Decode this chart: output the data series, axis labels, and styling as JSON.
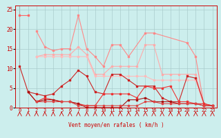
{
  "title": "",
  "xlabel": "Vent moyen/en rafales ( km/h )",
  "ylabel": "",
  "xlim": [
    -0.5,
    23.5
  ],
  "ylim": [
    0,
    26
  ],
  "bg_color": "#cceeed",
  "grid_color": "#aacccc",
  "series": [
    {
      "x": [
        0,
        1
      ],
      "y": [
        23.5,
        23.5
      ],
      "color": "#ff6666",
      "lw": 0.8,
      "ms": 2.0
    },
    {
      "x": [
        2,
        3,
        4,
        5,
        6,
        7,
        8,
        9,
        10,
        11,
        12,
        13,
        15,
        16,
        20,
        21,
        22,
        23
      ],
      "y": [
        19.5,
        15.5,
        14.5,
        15.0,
        15.0,
        23.5,
        15.0,
        13.0,
        10.5,
        16.0,
        16.0,
        13.0,
        19.0,
        19.0,
        16.5,
        13.0,
        0.5,
        0.5
      ],
      "color": "#ff8888",
      "lw": 0.8,
      "ms": 2.0
    },
    {
      "x": [
        2,
        3,
        4,
        5,
        6,
        7,
        8,
        9,
        10,
        11,
        12,
        13,
        14,
        15,
        16,
        17,
        18,
        19,
        20,
        21,
        22,
        23
      ],
      "y": [
        13.0,
        13.5,
        13.5,
        13.5,
        13.5,
        15.5,
        13.5,
        8.5,
        8.5,
        10.5,
        10.5,
        10.5,
        10.5,
        16.0,
        16.0,
        8.5,
        8.5,
        8.5,
        8.5,
        8.5,
        0.5,
        0.5
      ],
      "color": "#ffaaaa",
      "lw": 0.8,
      "ms": 2.0
    },
    {
      "x": [
        2,
        3,
        4,
        5,
        6,
        7,
        8,
        9,
        10,
        11,
        12,
        13,
        14,
        15,
        16,
        17,
        18,
        19,
        20,
        21,
        22,
        23
      ],
      "y": [
        13.0,
        13.0,
        13.0,
        13.0,
        13.0,
        13.0,
        13.0,
        8.0,
        8.0,
        8.0,
        8.0,
        8.0,
        8.0,
        8.0,
        7.0,
        7.0,
        7.0,
        7.0,
        7.0,
        7.0,
        0.5,
        0.5
      ],
      "color": "#ffbbbb",
      "lw": 0.8,
      "ms": 2.0
    },
    {
      "x": [
        0,
        1,
        2,
        3,
        4,
        5,
        6,
        7,
        8,
        9,
        10,
        11,
        12,
        13,
        14,
        15,
        16,
        17,
        18,
        19,
        20,
        21,
        22,
        23
      ],
      "y": [
        10.5,
        4.0,
        3.5,
        3.0,
        3.5,
        5.5,
        7.0,
        9.5,
        8.0,
        4.0,
        3.5,
        8.5,
        8.5,
        7.0,
        5.5,
        5.5,
        5.5,
        2.5,
        1.5,
        1.5,
        8.0,
        7.5,
        1.0,
        0.5
      ],
      "color": "#cc2222",
      "lw": 0.8,
      "ms": 2.0
    },
    {
      "x": [
        1,
        2,
        3,
        4,
        5,
        6,
        7,
        8,
        9,
        10,
        11,
        12,
        13,
        14,
        15,
        16,
        17,
        18,
        19,
        20,
        21,
        22,
        23
      ],
      "y": [
        4.0,
        1.5,
        2.5,
        2.0,
        1.5,
        1.5,
        1.0,
        0.5,
        0.5,
        3.5,
        3.5,
        3.5,
        3.5,
        2.5,
        5.5,
        5.0,
        5.0,
        5.5,
        1.5,
        1.5,
        1.0,
        1.0,
        0.5
      ],
      "color": "#ee3333",
      "lw": 0.8,
      "ms": 2.0
    },
    {
      "x": [
        1,
        2,
        3,
        4,
        5,
        6,
        7,
        8,
        9,
        10,
        11,
        12,
        13,
        14,
        15,
        16,
        17,
        18,
        19,
        20,
        21,
        22,
        23
      ],
      "y": [
        4.0,
        1.5,
        2.0,
        2.0,
        1.5,
        1.5,
        1.0,
        0.0,
        0.0,
        0.0,
        0.0,
        0.0,
        2.0,
        2.0,
        2.5,
        1.5,
        1.5,
        1.5,
        1.0,
        1.0,
        1.0,
        0.5,
        0.5
      ],
      "color": "#aa1111",
      "lw": 0.8,
      "ms": 2.0
    },
    {
      "x": [
        2,
        3,
        4,
        5,
        6,
        7,
        8,
        9,
        10,
        11,
        12,
        13,
        14,
        15,
        16,
        17,
        18,
        19,
        20,
        21,
        22,
        23
      ],
      "y": [
        1.5,
        1.5,
        1.5,
        1.5,
        1.5,
        0.5,
        0.5,
        0.5,
        0.5,
        0.5,
        0.5,
        0.5,
        0.5,
        1.5,
        1.5,
        1.0,
        1.0,
        1.0,
        1.0,
        1.0,
        0.5,
        0.5
      ],
      "color": "#dd4444",
      "lw": 0.8,
      "ms": 2.0
    }
  ],
  "xticks": [
    0,
    1,
    2,
    3,
    4,
    5,
    6,
    7,
    8,
    9,
    10,
    11,
    12,
    13,
    14,
    15,
    16,
    17,
    18,
    19,
    20,
    21,
    22,
    23
  ],
  "yticks": [
    0,
    5,
    10,
    15,
    20,
    25
  ],
  "tick_fontsize": 5,
  "xlabel_fontsize": 5.5,
  "tick_color": "#cc0000",
  "spine_color": "#cc0000",
  "arrow_color": "#cc0000"
}
